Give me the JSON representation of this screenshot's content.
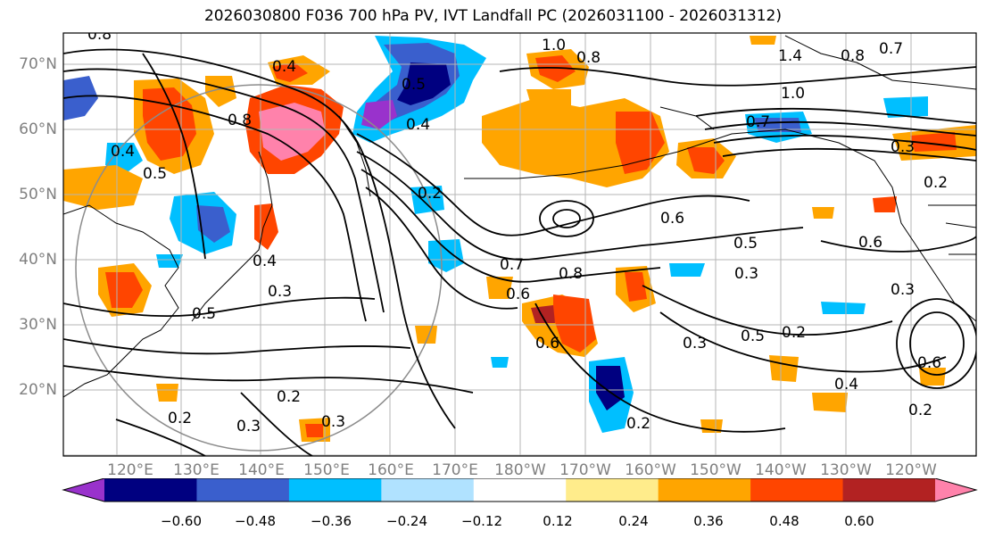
{
  "title": "2026030800 F036 700 hPa PV, IVT Landfall PC (2026031100 - 2026031312)",
  "lat_labels": [
    "70°N",
    "60°N",
    "50°N",
    "40°N",
    "30°N",
    "20°N"
  ],
  "lon_labels": [
    "120°E",
    "130°E",
    "140°E",
    "150°E",
    "160°E",
    "170°E",
    "180°W",
    "170°W",
    "160°W",
    "150°W",
    "140°W",
    "130°W",
    "120°W"
  ],
  "colorbar": {
    "colors": [
      "#9932cc",
      "#000080",
      "#3a5fcd",
      "#00bfff",
      "#b0e2ff",
      "#ffffff",
      "#ffec8b",
      "#ffa500",
      "#ff4500",
      "#b22222",
      "#ff82ab"
    ],
    "tick_labels": [
      "−0.60",
      "−0.48",
      "−0.36",
      "−0.24",
      "−0.12",
      "0.12",
      "0.24",
      "0.36",
      "0.48",
      "0.60"
    ]
  },
  "contour_labels": [
    "0.8",
    "0.4",
    "0.5",
    "1.0",
    "0.8",
    "0.7",
    "1.0",
    "1.4",
    "0.8",
    "0.6",
    "0.4",
    "0.5",
    "0.8",
    "0.2",
    "0.7",
    "0.6",
    "0.5",
    "0.3",
    "0.6",
    "0.7",
    "0.8",
    "0.6",
    "0.3",
    "0.5",
    "0.2",
    "0.3",
    "0.6",
    "0.4",
    "0.3",
    "0.2",
    "0.2",
    "0.3",
    "0.3",
    "0.2",
    "0.2",
    "0.4",
    "0.4",
    "0.5",
    "0.2",
    "0.3"
  ]
}
